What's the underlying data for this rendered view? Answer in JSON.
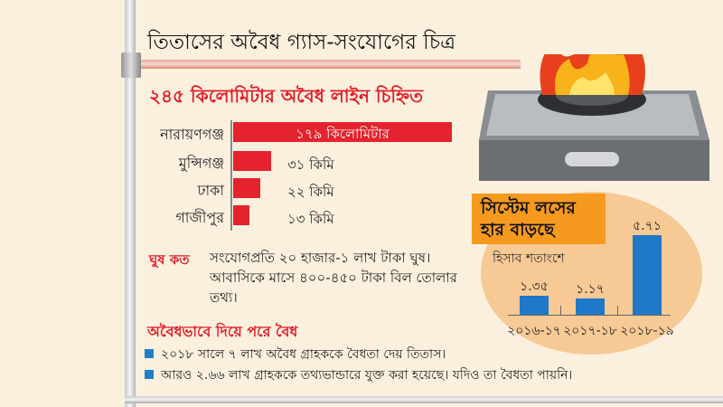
{
  "title": "তিতাসের অবৈধ গ্যাস-সংযোগের চিত্র",
  "chart_data": [
    {
      "type": "bar",
      "orientation": "horizontal",
      "title": "২৪৫ কিলোমিটার অবৈধ লাইন চিহ্নিত",
      "categories": [
        "নারায়ণগঞ্জ",
        "মুন্সিগঞ্জ",
        "ঢাকা",
        "গাজীপুর"
      ],
      "values": [
        179,
        31,
        22,
        13
      ],
      "value_labels": [
        "১৭৯ কিলোমিটার",
        "৩১ কিমি",
        "২২ কিমি",
        "১৩ কিমি"
      ],
      "color": "#e4232e"
    },
    {
      "type": "bar",
      "title": "সিস্টেম লসের হার বাড়ছে",
      "ylabel": "হিসাব শতাংশে",
      "categories": [
        "২০১৬-১৭",
        "২০১৭-১৮",
        "২০১৮-১৯"
      ],
      "values": [
        1.35,
        1.17,
        5.71
      ],
      "value_labels": [
        "১.৩৫",
        "১.১৭",
        "৫.৭১"
      ],
      "color": "#1f78c8"
    }
  ],
  "bribe": {
    "heading": "ঘুষ কত",
    "text": "সংযোগপ্রতি ২০ হাজার-১ লাখ টাকা ঘুষ। আবাসিকে মাসে ৪০০-৪৫০ টাকা বিল তোলার তথ্য।"
  },
  "legalized": {
    "heading": "অবৈধভাবে দিয়ে পরে বৈধ",
    "items": [
      "২০১৮ সালে ৭ লাখ অবৈধ গ্রাহককে বৈধতা দেয় তিতাস।",
      "আরও ২.৬৬ লাখ গ্রাহককে তথ্যভান্ডারে যুক্ত করা হয়েছে। যদিও তা বৈধতা পায়নি।"
    ]
  },
  "illustration": "gas-stove-with-flame"
}
